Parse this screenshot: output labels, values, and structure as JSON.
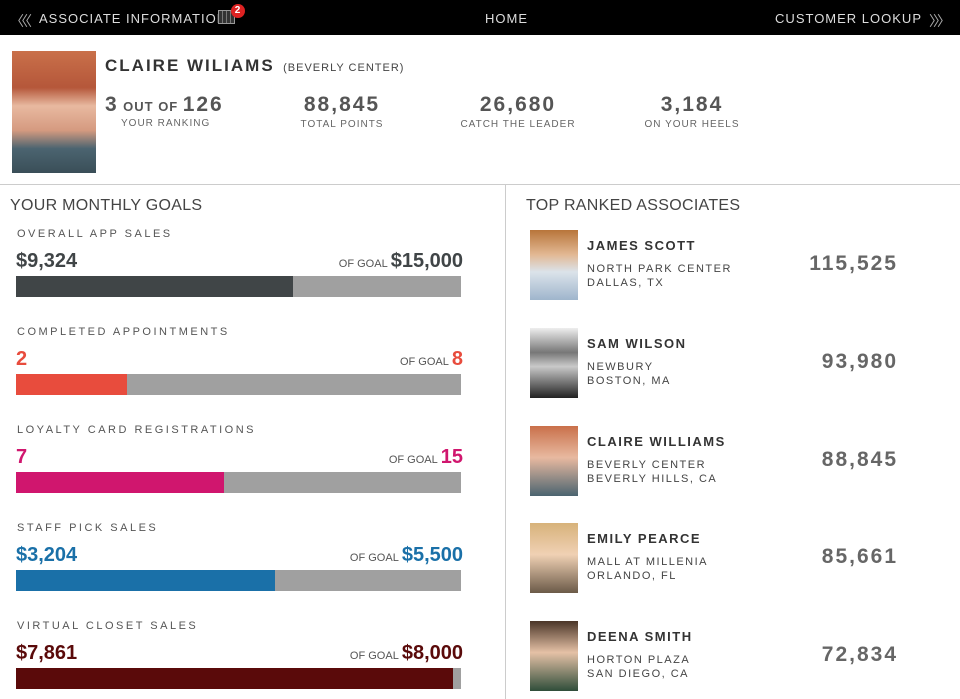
{
  "nav": {
    "left": "ASSOCIATE INFORMATION",
    "badge": "2",
    "center": "HOME",
    "right": "CUSTOMER LOOKUP"
  },
  "profile": {
    "name": "CLAIRE WILIAMS",
    "store": "(BEVERLY CENTER)",
    "ranking": {
      "rank": "3",
      "connector": "OUT OF",
      "total": "126",
      "label": "YOUR RANKING"
    },
    "stats": [
      {
        "value": "88,845",
        "label": "TOTAL POINTS"
      },
      {
        "value": "26,680",
        "label": "CATCH THE LEADER"
      },
      {
        "value": "3,184",
        "label": "ON YOUR HEELS"
      }
    ]
  },
  "goals": {
    "title": "YOUR MONTHLY GOALS",
    "of_goal": "OF GOAL",
    "items": [
      {
        "label": "OVERALL APP SALES",
        "color": "#404547",
        "current": {
          "value": 9324,
          "label": "$9,324"
        },
        "goal": {
          "value": 15000,
          "label": "$15,000"
        }
      },
      {
        "label": "COMPLETED APPOINTMENTS",
        "color": "#e84c3d",
        "current": 2,
        "goal": 8
      },
      {
        "label": "LOYALTY CARD REGISTRATIONS",
        "color": "#d0166e",
        "current": 7,
        "goal": 15
      },
      {
        "label": "STAFF PICK SALES",
        "color": "#1a70a8",
        "current": {
          "value": 3204,
          "label": "$3,204"
        },
        "goal": {
          "value": 5500,
          "label": "$5,500"
        }
      },
      {
        "label": "VIRTUAL CLOSET SALES",
        "color": "#5a0a0a",
        "current": {
          "value": 7861,
          "label": "$7,861"
        },
        "goal": {
          "value": 8000,
          "label": "$8,000"
        }
      }
    ]
  },
  "leaders": {
    "title": "TOP RANKED ASSOCIATES",
    "items": [
      {
        "name": "JAMES SCOTT",
        "location": "NORTH PARK CENTER",
        "city": "DALLAS, TX",
        "points": "115,525"
      },
      {
        "name": "SAM WILSON",
        "location": "NEWBURY",
        "city": "BOSTON, MA",
        "points": "93,980"
      },
      {
        "name": "CLAIRE WILLIAMS",
        "location": "BEVERLY CENTER",
        "city": "BEVERLY HILLS, CA",
        "points": "88,845"
      },
      {
        "name": "EMILY PEARCE",
        "location": "MALL AT MILLENIA",
        "city": "ORLANDO, FL",
        "points": "85,661"
      },
      {
        "name": "DEENA SMITH",
        "location": "HORTON PLAZA",
        "city": "SAN DIEGO, CA",
        "points": "72,834"
      }
    ]
  }
}
